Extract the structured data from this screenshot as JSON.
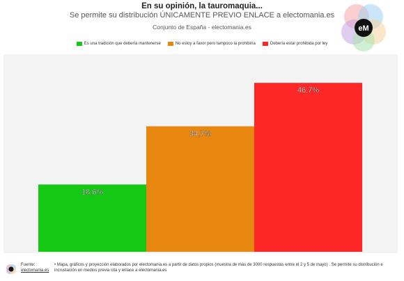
{
  "header": {
    "title": "En su opinión, la tauromaquia...",
    "subtitle": "Se permite su distribución ÚNICAMENTE PREVIO ENLACE a electomania.es",
    "subsubtitle": "Conjunto de España - electomania.es"
  },
  "logo": {
    "text": "eM"
  },
  "footer": {
    "fuente_label": "Fuente:",
    "fuente_link": "electomania.es",
    "note": "• Mapa, gráficos y proyección elaborados por electomania.es a partir de datos propios (muestra de más de 3000 respuestas entre el 2 y 5 de mayo) . Se permite su distribución e incrustación en medios previa cita y enlace a electomania.es"
  },
  "chart_data": {
    "type": "bar",
    "categories": [
      "Es una tradición que debería mantenerse",
      "No estoy a favor pero tampoco la prohibiría",
      "Debería estar prohibida por ley"
    ],
    "values": [
      18.6,
      34.7,
      46.7
    ],
    "value_labels": [
      "18,6%",
      "34,7%",
      "46,7%"
    ],
    "colors": [
      "#14c814",
      "#e8870f",
      "#ff2626"
    ],
    "ylim": [
      0,
      55
    ],
    "grid": false,
    "legend_position": "top"
  }
}
